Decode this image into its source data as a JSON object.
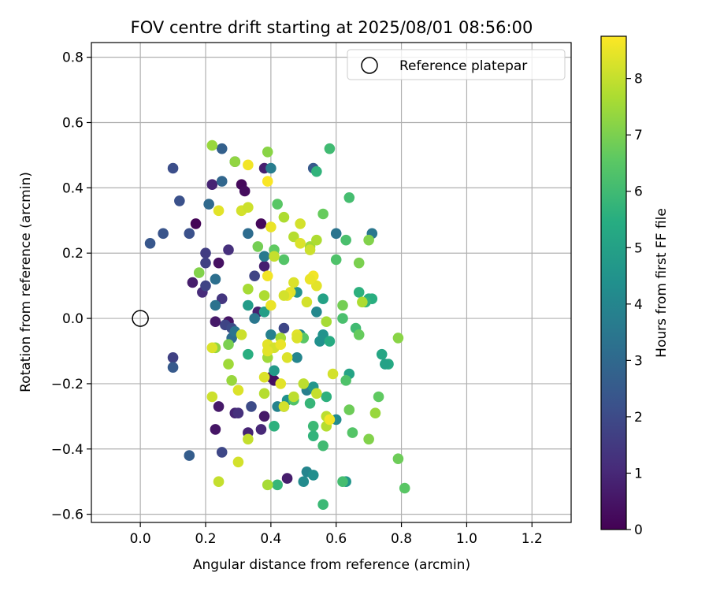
{
  "chart_data": {
    "type": "scatter",
    "title": "FOV centre drift starting at 2025/08/01 08:56:00",
    "xlabel": "Angular distance from reference (arcmin)",
    "ylabel": "Rotation from reference (arcmin)",
    "xlim": [
      -0.15,
      1.32
    ],
    "ylim": [
      -0.625,
      0.845
    ],
    "xticks": [
      0.0,
      0.2,
      0.4,
      0.6,
      0.8,
      1.0,
      1.2
    ],
    "xtick_labels": [
      "0.0",
      "0.2",
      "0.4",
      "0.6",
      "0.8",
      "1.0",
      "1.2"
    ],
    "yticks": [
      -0.6,
      -0.4,
      -0.2,
      0.0,
      0.2,
      0.4,
      0.6,
      0.8
    ],
    "ytick_labels": [
      "−0.6",
      "−0.4",
      "−0.2",
      "0.0",
      "0.2",
      "0.4",
      "0.6",
      "0.8"
    ],
    "grid": true,
    "legend": {
      "placement": "top-right",
      "entries": [
        "Reference platepar"
      ]
    },
    "reference_point": {
      "x": 0.0,
      "y": 0.0
    },
    "colorbar": {
      "label": "Hours from first FF file",
      "range": [
        0,
        8.75
      ],
      "ticks": [
        0,
        1,
        2,
        3,
        4,
        5,
        6,
        7,
        8
      ],
      "tick_labels": [
        "0",
        "1",
        "2",
        "3",
        "4",
        "5",
        "6",
        "7",
        "8"
      ],
      "colormap": "viridis"
    },
    "points": [
      {
        "x": 0.17,
        "y": 0.29,
        "c": 0.1
      },
      {
        "x": 0.31,
        "y": 0.41,
        "c": 0.2
      },
      {
        "x": 0.32,
        "y": 0.39,
        "c": 0.3
      },
      {
        "x": 0.24,
        "y": 0.17,
        "c": 0.4
      },
      {
        "x": 0.37,
        "y": 0.29,
        "c": 0.2
      },
      {
        "x": 0.27,
        "y": -0.01,
        "c": 0.5
      },
      {
        "x": 0.23,
        "y": -0.01,
        "c": 0.6
      },
      {
        "x": 0.16,
        "y": 0.11,
        "c": 0.7
      },
      {
        "x": 0.38,
        "y": 0.16,
        "c": 0.8
      },
      {
        "x": 0.24,
        "y": -0.27,
        "c": 0.6
      },
      {
        "x": 0.23,
        "y": -0.34,
        "c": 0.5
      },
      {
        "x": 0.29,
        "y": -0.29,
        "c": 0.9
      },
      {
        "x": 0.37,
        "y": -0.34,
        "c": 1.0
      },
      {
        "x": 0.41,
        "y": -0.19,
        "c": 0.4
      },
      {
        "x": 0.38,
        "y": -0.3,
        "c": 0.6
      },
      {
        "x": 0.36,
        "y": 0.02,
        "c": 0.8
      },
      {
        "x": 0.4,
        "y": -0.18,
        "c": 0.3
      },
      {
        "x": 0.45,
        "y": -0.49,
        "c": 0.7
      },
      {
        "x": 0.22,
        "y": 0.41,
        "c": 0.9
      },
      {
        "x": 0.27,
        "y": 0.21,
        "c": 1.2
      },
      {
        "x": 0.19,
        "y": 0.08,
        "c": 1.1
      },
      {
        "x": 0.25,
        "y": 0.06,
        "c": 1.4
      },
      {
        "x": 0.3,
        "y": -0.29,
        "c": 1.2
      },
      {
        "x": 0.33,
        "y": -0.35,
        "c": 0.9
      },
      {
        "x": 0.38,
        "y": 0.46,
        "c": 0.8
      },
      {
        "x": 0.2,
        "y": 0.2,
        "c": 1.6
      },
      {
        "x": 0.2,
        "y": 0.17,
        "c": 1.7
      },
      {
        "x": 0.2,
        "y": 0.1,
        "c": 1.8
      },
      {
        "x": 0.1,
        "y": -0.12,
        "c": 1.7
      },
      {
        "x": 0.25,
        "y": -0.41,
        "c": 1.9
      },
      {
        "x": 0.26,
        "y": -0.02,
        "c": 1.8
      },
      {
        "x": 0.28,
        "y": -0.03,
        "c": 2.0
      },
      {
        "x": 0.35,
        "y": 0.13,
        "c": 1.8
      },
      {
        "x": 0.34,
        "y": -0.27,
        "c": 2.0
      },
      {
        "x": 0.44,
        "y": -0.03,
        "c": 1.9
      },
      {
        "x": 0.1,
        "y": 0.46,
        "c": 2.1
      },
      {
        "x": 0.12,
        "y": 0.36,
        "c": 2.2
      },
      {
        "x": 0.07,
        "y": 0.26,
        "c": 2.3
      },
      {
        "x": 0.03,
        "y": 0.23,
        "c": 2.4
      },
      {
        "x": 0.15,
        "y": 0.26,
        "c": 2.2
      },
      {
        "x": 0.1,
        "y": -0.15,
        "c": 2.5
      },
      {
        "x": 0.15,
        "y": -0.42,
        "c": 2.6
      },
      {
        "x": 0.25,
        "y": 0.52,
        "c": 2.7
      },
      {
        "x": 0.29,
        "y": 0.48,
        "c": 2.8
      },
      {
        "x": 0.53,
        "y": 0.46,
        "c": 2.5
      },
      {
        "x": 0.25,
        "y": 0.42,
        "c": 2.9
      },
      {
        "x": 0.21,
        "y": 0.35,
        "c": 3.0
      },
      {
        "x": 0.33,
        "y": 0.26,
        "c": 3.1
      },
      {
        "x": 0.23,
        "y": 0.12,
        "c": 3.2
      },
      {
        "x": 0.23,
        "y": 0.04,
        "c": 3.3
      },
      {
        "x": 0.28,
        "y": -0.06,
        "c": 3.1
      },
      {
        "x": 0.29,
        "y": -0.04,
        "c": 3.4
      },
      {
        "x": 0.35,
        "y": 0.0,
        "c": 3.5
      },
      {
        "x": 0.38,
        "y": 0.19,
        "c": 3.6
      },
      {
        "x": 0.6,
        "y": 0.26,
        "c": 3.4
      },
      {
        "x": 0.71,
        "y": 0.26,
        "c": 3.5
      },
      {
        "x": 0.4,
        "y": 0.46,
        "c": 3.7
      },
      {
        "x": 0.4,
        "y": -0.05,
        "c": 3.8
      },
      {
        "x": 0.44,
        "y": -0.27,
        "c": 3.6
      },
      {
        "x": 0.42,
        "y": -0.27,
        "c": 3.9
      },
      {
        "x": 0.48,
        "y": -0.12,
        "c": 4.0
      },
      {
        "x": 0.49,
        "y": -0.05,
        "c": 4.1
      },
      {
        "x": 0.51,
        "y": -0.22,
        "c": 3.8
      },
      {
        "x": 0.51,
        "y": -0.47,
        "c": 4.0
      },
      {
        "x": 0.5,
        "y": -0.5,
        "c": 4.2
      },
      {
        "x": 0.53,
        "y": -0.48,
        "c": 4.3
      },
      {
        "x": 0.54,
        "y": 0.02,
        "c": 4.1
      },
      {
        "x": 0.55,
        "y": -0.07,
        "c": 4.4
      },
      {
        "x": 0.6,
        "y": -0.31,
        "c": 4.2
      },
      {
        "x": 0.56,
        "y": -0.05,
        "c": 4.5
      },
      {
        "x": 0.63,
        "y": -0.5,
        "c": 4.6
      },
      {
        "x": 0.41,
        "y": -0.16,
        "c": 4.7
      },
      {
        "x": 0.33,
        "y": 0.04,
        "c": 4.8
      },
      {
        "x": 0.38,
        "y": 0.02,
        "c": 4.9
      },
      {
        "x": 0.48,
        "y": 0.08,
        "c": 4.5
      },
      {
        "x": 0.53,
        "y": -0.21,
        "c": 4.6
      },
      {
        "x": 0.45,
        "y": -0.25,
        "c": 4.4
      },
      {
        "x": 0.56,
        "y": 0.06,
        "c": 5.0
      },
      {
        "x": 0.64,
        "y": -0.17,
        "c": 5.1
      },
      {
        "x": 0.74,
        "y": -0.11,
        "c": 5.2
      },
      {
        "x": 0.76,
        "y": -0.14,
        "c": 5.3
      },
      {
        "x": 0.75,
        "y": -0.14,
        "c": 5.0
      },
      {
        "x": 0.7,
        "y": 0.06,
        "c": 5.4
      },
      {
        "x": 0.71,
        "y": 0.06,
        "c": 5.5
      },
      {
        "x": 0.67,
        "y": 0.08,
        "c": 5.6
      },
      {
        "x": 0.69,
        "y": 0.05,
        "c": 5.7
      },
      {
        "x": 0.58,
        "y": -0.07,
        "c": 5.4
      },
      {
        "x": 0.57,
        "y": -0.24,
        "c": 5.6
      },
      {
        "x": 0.52,
        "y": -0.26,
        "c": 5.8
      },
      {
        "x": 0.53,
        "y": -0.33,
        "c": 5.9
      },
      {
        "x": 0.53,
        "y": -0.36,
        "c": 5.7
      },
      {
        "x": 0.56,
        "y": -0.39,
        "c": 6.0
      },
      {
        "x": 0.56,
        "y": -0.57,
        "c": 5.9
      },
      {
        "x": 0.41,
        "y": -0.33,
        "c": 5.6
      },
      {
        "x": 0.42,
        "y": -0.51,
        "c": 5.8
      },
      {
        "x": 0.33,
        "y": -0.11,
        "c": 5.5
      },
      {
        "x": 0.54,
        "y": 0.45,
        "c": 5.7
      },
      {
        "x": 0.58,
        "y": 0.52,
        "c": 6.0
      },
      {
        "x": 0.64,
        "y": 0.37,
        "c": 6.1
      },
      {
        "x": 0.63,
        "y": 0.24,
        "c": 6.2
      },
      {
        "x": 0.6,
        "y": 0.18,
        "c": 6.3
      },
      {
        "x": 0.62,
        "y": 0.0,
        "c": 6.2
      },
      {
        "x": 0.63,
        "y": -0.19,
        "c": 6.3
      },
      {
        "x": 0.65,
        "y": -0.35,
        "c": 6.4
      },
      {
        "x": 0.62,
        "y": -0.5,
        "c": 6.1
      },
      {
        "x": 0.66,
        "y": -0.03,
        "c": 6.0
      },
      {
        "x": 0.42,
        "y": 0.35,
        "c": 6.5
      },
      {
        "x": 0.41,
        "y": 0.21,
        "c": 6.6
      },
      {
        "x": 0.44,
        "y": 0.18,
        "c": 6.4
      },
      {
        "x": 0.47,
        "y": -0.25,
        "c": 6.3
      },
      {
        "x": 0.5,
        "y": -0.06,
        "c": 6.5
      },
      {
        "x": 0.56,
        "y": 0.32,
        "c": 6.7
      },
      {
        "x": 0.73,
        "y": -0.24,
        "c": 6.6
      },
      {
        "x": 0.79,
        "y": -0.43,
        "c": 6.8
      },
      {
        "x": 0.81,
        "y": -0.52,
        "c": 6.5
      },
      {
        "x": 0.67,
        "y": -0.05,
        "c": 6.7
      },
      {
        "x": 0.64,
        "y": -0.28,
        "c": 6.8
      },
      {
        "x": 0.67,
        "y": 0.17,
        "c": 7.0
      },
      {
        "x": 0.7,
        "y": 0.24,
        "c": 7.1
      },
      {
        "x": 0.62,
        "y": 0.04,
        "c": 6.9
      },
      {
        "x": 0.36,
        "y": 0.22,
        "c": 6.9
      },
      {
        "x": 0.39,
        "y": 0.51,
        "c": 7.2
      },
      {
        "x": 0.29,
        "y": 0.48,
        "c": 7.3
      },
      {
        "x": 0.22,
        "y": 0.53,
        "c": 7.4
      },
      {
        "x": 0.18,
        "y": 0.14,
        "c": 7.1
      },
      {
        "x": 0.27,
        "y": -0.08,
        "c": 7.0
      },
      {
        "x": 0.23,
        "y": -0.09,
        "c": 7.3
      },
      {
        "x": 0.27,
        "y": -0.14,
        "c": 7.5
      },
      {
        "x": 0.28,
        "y": -0.19,
        "c": 7.4
      },
      {
        "x": 0.33,
        "y": 0.09,
        "c": 7.6
      },
      {
        "x": 0.38,
        "y": 0.07,
        "c": 7.7
      },
      {
        "x": 0.39,
        "y": -0.12,
        "c": 7.5
      },
      {
        "x": 0.38,
        "y": -0.23,
        "c": 7.8
      },
      {
        "x": 0.43,
        "y": -0.06,
        "c": 7.6
      },
      {
        "x": 0.47,
        "y": -0.24,
        "c": 7.9
      },
      {
        "x": 0.44,
        "y": 0.31,
        "c": 7.7
      },
      {
        "x": 0.47,
        "y": 0.25,
        "c": 7.8
      },
      {
        "x": 0.52,
        "y": 0.22,
        "c": 7.5
      },
      {
        "x": 0.5,
        "y": -0.2,
        "c": 7.9
      },
      {
        "x": 0.54,
        "y": -0.23,
        "c": 8.0
      },
      {
        "x": 0.57,
        "y": -0.01,
        "c": 7.6
      },
      {
        "x": 0.57,
        "y": -0.3,
        "c": 7.9
      },
      {
        "x": 0.54,
        "y": 0.24,
        "c": 7.7
      },
      {
        "x": 0.59,
        "y": -0.17,
        "c": 8.2
      },
      {
        "x": 0.68,
        "y": 0.05,
        "c": 7.7
      },
      {
        "x": 0.72,
        "y": -0.29,
        "c": 7.4
      },
      {
        "x": 0.79,
        "y": -0.06,
        "c": 7.2
      },
      {
        "x": 0.7,
        "y": -0.37,
        "c": 7.1
      },
      {
        "x": 0.57,
        "y": -0.33,
        "c": 7.8
      },
      {
        "x": 0.39,
        "y": -0.51,
        "c": 7.6
      },
      {
        "x": 0.24,
        "y": -0.5,
        "c": 8.0
      },
      {
        "x": 0.3,
        "y": -0.44,
        "c": 8.2
      },
      {
        "x": 0.33,
        "y": -0.37,
        "c": 8.0
      },
      {
        "x": 0.3,
        "y": -0.22,
        "c": 8.3
      },
      {
        "x": 0.22,
        "y": -0.24,
        "c": 8.1
      },
      {
        "x": 0.22,
        "y": -0.09,
        "c": 8.3
      },
      {
        "x": 0.31,
        "y": -0.05,
        "c": 8.1
      },
      {
        "x": 0.39,
        "y": -0.08,
        "c": 8.4
      },
      {
        "x": 0.41,
        "y": -0.09,
        "c": 8.2
      },
      {
        "x": 0.38,
        "y": -0.18,
        "c": 8.3
      },
      {
        "x": 0.43,
        "y": -0.2,
        "c": 8.4
      },
      {
        "x": 0.44,
        "y": -0.27,
        "c": 8.2
      },
      {
        "x": 0.43,
        "y": -0.08,
        "c": 8.5
      },
      {
        "x": 0.45,
        "y": -0.12,
        "c": 8.3
      },
      {
        "x": 0.48,
        "y": -0.05,
        "c": 8.4
      },
      {
        "x": 0.4,
        "y": 0.04,
        "c": 8.5
      },
      {
        "x": 0.39,
        "y": 0.13,
        "c": 8.6
      },
      {
        "x": 0.46,
        "y": 0.08,
        "c": 8.4
      },
      {
        "x": 0.47,
        "y": 0.11,
        "c": 8.3
      },
      {
        "x": 0.45,
        "y": 0.07,
        "c": 8.5
      },
      {
        "x": 0.51,
        "y": 0.05,
        "c": 8.2
      },
      {
        "x": 0.53,
        "y": 0.13,
        "c": 8.6
      },
      {
        "x": 0.54,
        "y": 0.1,
        "c": 8.4
      },
      {
        "x": 0.49,
        "y": 0.23,
        "c": 8.3
      },
      {
        "x": 0.49,
        "y": 0.29,
        "c": 8.2
      },
      {
        "x": 0.4,
        "y": 0.28,
        "c": 8.5
      },
      {
        "x": 0.33,
        "y": 0.47,
        "c": 8.6
      },
      {
        "x": 0.39,
        "y": 0.42,
        "c": 8.7
      },
      {
        "x": 0.31,
        "y": 0.33,
        "c": 8.2
      },
      {
        "x": 0.24,
        "y": 0.33,
        "c": 8.4
      },
      {
        "x": 0.52,
        "y": 0.12,
        "c": 8.5
      },
      {
        "x": 0.58,
        "y": -0.31,
        "c": 8.6
      },
      {
        "x": 0.39,
        "y": -0.1,
        "c": 8.4
      },
      {
        "x": 0.48,
        "y": -0.06,
        "c": 8.3
      },
      {
        "x": 0.52,
        "y": 0.21,
        "c": 8.1
      },
      {
        "x": 0.41,
        "y": 0.19,
        "c": 8.0
      },
      {
        "x": 0.33,
        "y": 0.34,
        "c": 8.1
      },
      {
        "x": 0.44,
        "y": 0.07,
        "c": 8.2
      }
    ]
  }
}
